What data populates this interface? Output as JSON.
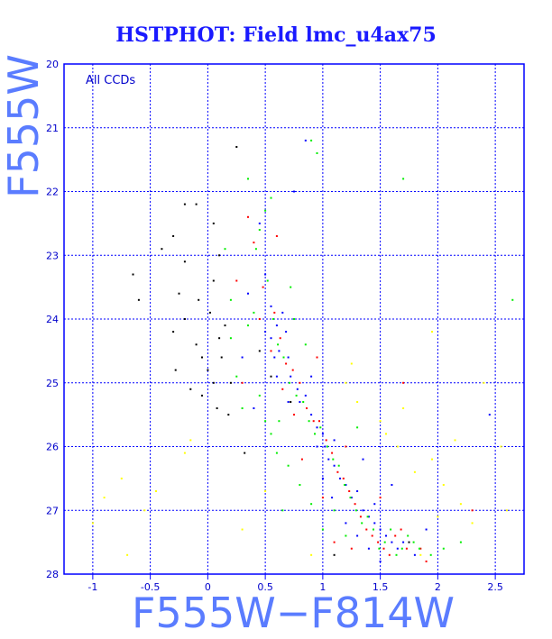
{
  "chart_data": {
    "type": "scatter",
    "title": "HSTPHOT: Field lmc_u4ax75",
    "xlabel": "F555W−F814W",
    "ylabel": "F555W",
    "annotation": "All CCDs",
    "xlim": [
      -1.25,
      2.75
    ],
    "ylim": [
      28,
      20
    ],
    "y_inverted": true,
    "grid": true,
    "x_ticks": [
      "-1",
      "-0.5",
      "0",
      "0.5",
      "1",
      "1.5",
      "2",
      "2.5"
    ],
    "y_ticks": [
      "20",
      "21",
      "22",
      "23",
      "24",
      "25",
      "26",
      "27",
      "28"
    ],
    "series": [
      {
        "color": "#0000ff",
        "points": [
          [
            0.45,
            22.5
          ],
          [
            0.5,
            23.3
          ],
          [
            0.55,
            23.8
          ],
          [
            0.6,
            24.1
          ],
          [
            0.62,
            24.5
          ],
          [
            0.7,
            24.6
          ],
          [
            0.72,
            24.9
          ],
          [
            0.78,
            25.1
          ],
          [
            0.8,
            25.3
          ],
          [
            0.85,
            25.2
          ],
          [
            0.9,
            25.5
          ],
          [
            0.95,
            25.7
          ],
          [
            1.0,
            25.8
          ],
          [
            1.02,
            26.0
          ],
          [
            1.05,
            26.2
          ],
          [
            1.1,
            26.3
          ],
          [
            1.15,
            26.5
          ],
          [
            1.2,
            26.6
          ],
          [
            1.25,
            26.8
          ],
          [
            1.3,
            26.7
          ],
          [
            1.35,
            27.0
          ],
          [
            1.4,
            27.1
          ],
          [
            1.45,
            27.2
          ],
          [
            1.5,
            27.3
          ],
          [
            1.55,
            27.4
          ],
          [
            1.6,
            27.5
          ],
          [
            1.65,
            27.6
          ],
          [
            1.7,
            27.5
          ],
          [
            1.4,
            27.6
          ],
          [
            1.3,
            27.4
          ],
          [
            0.55,
            24.3
          ],
          [
            0.6,
            24.9
          ],
          [
            0.7,
            25.3
          ],
          [
            0.65,
            23.9
          ],
          [
            0.5,
            24.2
          ],
          [
            0.9,
            24.9
          ],
          [
            1.0,
            26.5
          ],
          [
            1.1,
            25.9
          ],
          [
            1.2,
            27.2
          ],
          [
            1.8,
            27.7
          ],
          [
            0.3,
            24.6
          ],
          [
            0.4,
            25.4
          ],
          [
            0.35,
            23.6
          ],
          [
            1.6,
            26.6
          ],
          [
            0.75,
            22.0
          ],
          [
            0.85,
            21.2
          ],
          [
            1.5,
            27.8
          ],
          [
            1.35,
            26.2
          ],
          [
            1.45,
            26.9
          ],
          [
            0.95,
            26.0
          ],
          [
            2.45,
            25.5
          ],
          [
            1.9,
            27.3
          ],
          [
            0.58,
            24.6
          ],
          [
            0.68,
            24.2
          ],
          [
            1.08,
            26.8
          ]
        ]
      },
      {
        "color": "#ff0000",
        "points": [
          [
            0.4,
            22.8
          ],
          [
            0.48,
            23.5
          ],
          [
            0.58,
            23.9
          ],
          [
            0.63,
            24.3
          ],
          [
            0.68,
            24.7
          ],
          [
            0.74,
            24.8
          ],
          [
            0.8,
            25.0
          ],
          [
            0.86,
            25.4
          ],
          [
            0.92,
            25.6
          ],
          [
            0.97,
            25.6
          ],
          [
            1.03,
            25.9
          ],
          [
            1.08,
            26.1
          ],
          [
            1.13,
            26.4
          ],
          [
            1.18,
            26.5
          ],
          [
            1.23,
            26.7
          ],
          [
            1.28,
            26.9
          ],
          [
            1.33,
            27.1
          ],
          [
            1.38,
            27.3
          ],
          [
            1.43,
            27.4
          ],
          [
            1.48,
            27.5
          ],
          [
            1.53,
            27.6
          ],
          [
            1.58,
            27.7
          ],
          [
            1.63,
            27.4
          ],
          [
            1.68,
            27.3
          ],
          [
            1.73,
            27.6
          ],
          [
            0.55,
            24.5
          ],
          [
            0.65,
            25.1
          ],
          [
            0.45,
            24.0
          ],
          [
            0.75,
            25.5
          ],
          [
            0.25,
            23.4
          ],
          [
            1.0,
            26.8
          ],
          [
            1.2,
            26.0
          ],
          [
            1.5,
            26.8
          ],
          [
            2.3,
            27.0
          ],
          [
            1.85,
            27.6
          ],
          [
            0.35,
            22.4
          ],
          [
            0.6,
            22.7
          ],
          [
            1.1,
            27.5
          ],
          [
            1.9,
            27.8
          ],
          [
            0.95,
            24.6
          ],
          [
            1.7,
            25.0
          ],
          [
            0.3,
            25.0
          ],
          [
            1.25,
            27.6
          ],
          [
            0.82,
            26.2
          ]
        ]
      },
      {
        "color": "#00ee00",
        "points": [
          [
            0.42,
            22.9
          ],
          [
            0.52,
            23.4
          ],
          [
            0.57,
            24.0
          ],
          [
            0.61,
            24.4
          ],
          [
            0.66,
            24.6
          ],
          [
            0.71,
            25.0
          ],
          [
            0.77,
            25.2
          ],
          [
            0.83,
            25.3
          ],
          [
            0.88,
            25.6
          ],
          [
            0.93,
            25.8
          ],
          [
            0.98,
            25.7
          ],
          [
            1.04,
            26.0
          ],
          [
            1.09,
            26.2
          ],
          [
            1.14,
            26.3
          ],
          [
            1.19,
            26.6
          ],
          [
            1.24,
            26.8
          ],
          [
            1.29,
            27.0
          ],
          [
            1.34,
            27.2
          ],
          [
            1.39,
            27.1
          ],
          [
            1.44,
            27.3
          ],
          [
            1.49,
            27.6
          ],
          [
            1.54,
            27.5
          ],
          [
            1.59,
            27.3
          ],
          [
            1.64,
            27.7
          ],
          [
            1.69,
            27.6
          ],
          [
            1.74,
            27.4
          ],
          [
            1.79,
            27.5
          ],
          [
            1.84,
            27.6
          ],
          [
            1.94,
            27.7
          ],
          [
            2.05,
            27.6
          ],
          [
            0.2,
            24.3
          ],
          [
            0.25,
            24.9
          ],
          [
            0.3,
            25.4
          ],
          [
            0.35,
            24.1
          ],
          [
            0.45,
            25.2
          ],
          [
            0.5,
            25.6
          ],
          [
            0.55,
            25.8
          ],
          [
            0.6,
            26.1
          ],
          [
            0.7,
            26.3
          ],
          [
            0.8,
            26.6
          ],
          [
            0.9,
            26.9
          ],
          [
            0.65,
            27.0
          ],
          [
            1.0,
            27.3
          ],
          [
            1.1,
            27.0
          ],
          [
            1.2,
            27.4
          ],
          [
            0.4,
            23.9
          ],
          [
            0.5,
            22.3
          ],
          [
            0.55,
            22.1
          ],
          [
            0.9,
            21.2
          ],
          [
            0.95,
            21.4
          ],
          [
            0.35,
            21.8
          ],
          [
            0.15,
            22.9
          ],
          [
            0.2,
            23.7
          ],
          [
            0.75,
            24.0
          ],
          [
            1.7,
            21.8
          ],
          [
            2.65,
            23.7
          ],
          [
            2.2,
            27.5
          ],
          [
            1.3,
            25.7
          ],
          [
            0.85,
            24.4
          ],
          [
            0.72,
            23.5
          ],
          [
            0.62,
            25.6
          ],
          [
            0.45,
            22.6
          ]
        ]
      },
      {
        "color": "#000000",
        "points": [
          [
            -0.25,
            23.6
          ],
          [
            -0.2,
            24.0
          ],
          [
            -0.1,
            24.4
          ],
          [
            -0.05,
            24.6
          ],
          [
            0.0,
            24.8
          ],
          [
            0.05,
            25.0
          ],
          [
            -0.15,
            25.1
          ],
          [
            0.1,
            24.3
          ],
          [
            0.15,
            24.1
          ],
          [
            0.02,
            23.9
          ],
          [
            -0.3,
            24.2
          ],
          [
            -0.28,
            24.8
          ],
          [
            -0.05,
            25.2
          ],
          [
            0.08,
            25.4
          ],
          [
            0.2,
            25.0
          ],
          [
            0.1,
            23.0
          ],
          [
            0.05,
            22.5
          ],
          [
            -0.1,
            22.2
          ],
          [
            -0.2,
            22.2
          ],
          [
            -0.4,
            22.9
          ],
          [
            -0.3,
            22.7
          ],
          [
            -0.65,
            23.3
          ],
          [
            -0.6,
            23.7
          ],
          [
            -0.2,
            23.1
          ],
          [
            0.25,
            21.3
          ],
          [
            0.55,
            24.9
          ],
          [
            0.45,
            24.5
          ],
          [
            0.72,
            25.3
          ],
          [
            1.1,
            27.7
          ],
          [
            1.75,
            27.5
          ],
          [
            0.05,
            23.4
          ],
          [
            0.12,
            24.6
          ],
          [
            -0.08,
            23.7
          ],
          [
            0.18,
            25.5
          ],
          [
            0.32,
            26.1
          ]
        ]
      },
      {
        "color": "#ffff00",
        "points": [
          [
            1.55,
            25.8
          ],
          [
            1.65,
            26.0
          ],
          [
            1.8,
            26.4
          ],
          [
            1.95,
            26.2
          ],
          [
            2.05,
            26.6
          ],
          [
            2.2,
            26.9
          ],
          [
            2.3,
            27.2
          ],
          [
            1.2,
            25.0
          ],
          [
            1.3,
            25.3
          ],
          [
            1.5,
            25.6
          ],
          [
            2.4,
            25.0
          ],
          [
            2.55,
            26.0
          ],
          [
            -0.75,
            26.5
          ],
          [
            -0.9,
            26.8
          ],
          [
            -1.0,
            27.2
          ],
          [
            -0.55,
            27.0
          ],
          [
            -0.45,
            26.7
          ],
          [
            -0.2,
            26.1
          ],
          [
            0.5,
            26.7
          ],
          [
            0.3,
            27.3
          ],
          [
            -0.7,
            27.7
          ],
          [
            2.6,
            27.0
          ],
          [
            1.95,
            24.2
          ],
          [
            1.85,
            27.7
          ],
          [
            0.9,
            27.7
          ],
          [
            2.0,
            27.1
          ],
          [
            1.7,
            25.4
          ],
          [
            -0.15,
            25.9
          ],
          [
            1.25,
            24.7
          ],
          [
            2.15,
            25.9
          ]
        ]
      }
    ]
  }
}
